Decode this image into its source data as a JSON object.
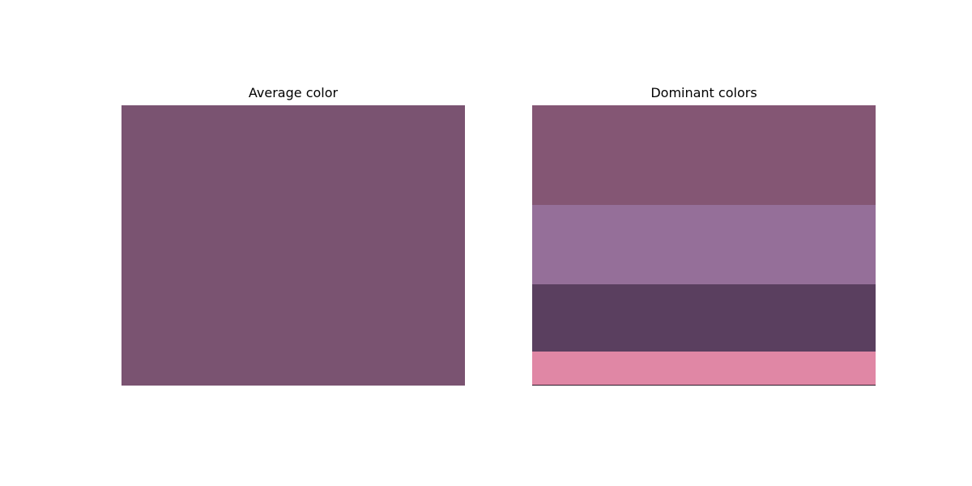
{
  "chart_data": [
    {
      "type": "bar",
      "title": "Average color",
      "colors": [
        "#7a5371"
      ],
      "values": [
        1
      ]
    },
    {
      "type": "bar",
      "title": "Dominant colors",
      "colors": [
        "#845674",
        "#956f99",
        "#5a3f5f",
        "#e087a5",
        "#2d1a2b"
      ],
      "values": [
        0.355,
        0.285,
        0.238,
        0.119,
        0.003
      ]
    }
  ]
}
